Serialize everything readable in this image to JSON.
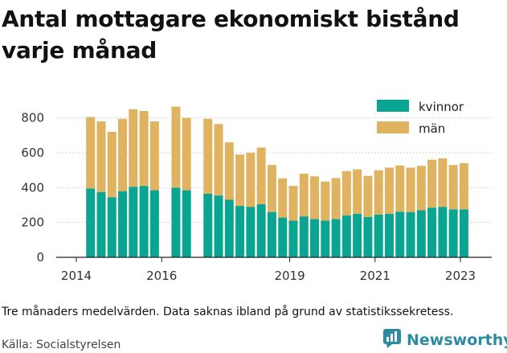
{
  "title": "Antal mottagare ekonomiskt bistånd varje månad",
  "note": "Tre månaders medelvärden. Data saknas ibland på grund av statistikssekretess.",
  "source": "Källa: Socialstyrelsen",
  "brand": {
    "name": "Newsworthy",
    "icon": "newsworthy-chart-logo-icon",
    "color": "#2c8ba3"
  },
  "colors": {
    "kvinnor": "#0aa591",
    "man": "#dfb35f"
  },
  "chart_data": {
    "type": "bar",
    "stacked": true,
    "x_type": "date",
    "x_ticks": [
      "2014",
      "2016",
      "2019",
      "2021",
      "2023"
    ],
    "y_ticks": [
      "0",
      "200",
      "400",
      "600",
      "800"
    ],
    "ylim": [
      0,
      900
    ],
    "grid": true,
    "legend_position": "top-right",
    "dates": [
      "2014-05",
      "2014-08",
      "2014-11",
      "2015-02",
      "2015-05",
      "2015-08",
      "2015-11",
      "2016-05",
      "2016-08",
      "2017-02",
      "2017-05",
      "2017-08",
      "2017-11",
      "2018-02",
      "2018-05",
      "2018-08",
      "2018-11",
      "2019-02",
      "2019-05",
      "2019-08",
      "2019-11",
      "2020-02",
      "2020-05",
      "2020-08",
      "2020-11",
      "2021-02",
      "2021-05",
      "2021-08",
      "2021-11",
      "2022-02",
      "2022-05",
      "2022-08",
      "2022-11",
      "2023-02",
      "2023-05"
    ],
    "series": [
      {
        "name": "kvinnor",
        "values": [
          395,
          375,
          345,
          380,
          405,
          410,
          385,
          400,
          385,
          365,
          355,
          330,
          295,
          290,
          305,
          260,
          228,
          210,
          235,
          220,
          210,
          220,
          240,
          250,
          232,
          245,
          250,
          262,
          260,
          270,
          285,
          290,
          275,
          275,
          0
        ]
      },
      {
        "name": "män",
        "values": [
          410,
          405,
          375,
          415,
          445,
          430,
          395,
          465,
          415,
          430,
          410,
          330,
          295,
          310,
          325,
          270,
          225,
          200,
          245,
          245,
          225,
          235,
          255,
          255,
          235,
          255,
          265,
          265,
          255,
          255,
          275,
          278,
          255,
          265,
          0
        ]
      }
    ]
  }
}
